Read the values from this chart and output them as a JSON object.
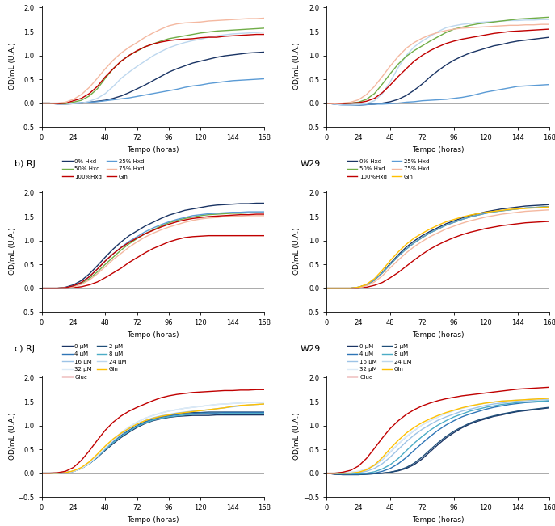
{
  "t": [
    0,
    6,
    12,
    18,
    24,
    30,
    36,
    42,
    48,
    54,
    60,
    66,
    72,
    78,
    84,
    90,
    96,
    102,
    108,
    114,
    120,
    126,
    132,
    138,
    144,
    150,
    156,
    162,
    168
  ],
  "row0_RJ": {
    "Hxd": [
      0,
      0,
      -0.02,
      -0.02,
      -0.01,
      0.0,
      0.02,
      0.04,
      0.06,
      0.1,
      0.15,
      0.22,
      0.3,
      0.38,
      0.47,
      0.56,
      0.65,
      0.72,
      0.78,
      0.84,
      0.88,
      0.92,
      0.96,
      0.99,
      1.01,
      1.03,
      1.05,
      1.06,
      1.07
    ],
    "Hxd+SDS": [
      0,
      0,
      0,
      0,
      0,
      0.01,
      0.02,
      0.03,
      0.05,
      0.07,
      0.09,
      0.11,
      0.14,
      0.17,
      0.2,
      0.23,
      0.26,
      0.29,
      0.33,
      0.36,
      0.38,
      0.41,
      0.43,
      0.45,
      0.47,
      0.48,
      0.49,
      0.5,
      0.51
    ],
    "Hxd+T8": [
      0,
      0,
      -0.02,
      -0.02,
      -0.01,
      0.0,
      0.04,
      0.1,
      0.2,
      0.35,
      0.52,
      0.65,
      0.77,
      0.88,
      0.99,
      1.08,
      1.16,
      1.22,
      1.27,
      1.31,
      1.34,
      1.38,
      1.41,
      1.43,
      1.45,
      1.46,
      1.47,
      1.48,
      1.49
    ],
    "T8": [
      0,
      0,
      -0.01,
      -0.01,
      0.02,
      0.06,
      0.15,
      0.3,
      0.52,
      0.72,
      0.88,
      1.0,
      1.09,
      1.18,
      1.24,
      1.3,
      1.35,
      1.38,
      1.41,
      1.44,
      1.47,
      1.49,
      1.51,
      1.52,
      1.53,
      1.54,
      1.55,
      1.56,
      1.57
    ],
    "Gln": [
      0,
      0,
      -0.01,
      0.0,
      0.05,
      0.1,
      0.2,
      0.35,
      0.55,
      0.72,
      0.88,
      1.0,
      1.1,
      1.18,
      1.24,
      1.28,
      1.31,
      1.33,
      1.34,
      1.35,
      1.37,
      1.38,
      1.38,
      1.4,
      1.41,
      1.42,
      1.43,
      1.44,
      1.44
    ],
    "Gluc": [
      0,
      0,
      0.0,
      0.02,
      0.08,
      0.18,
      0.33,
      0.52,
      0.72,
      0.9,
      1.05,
      1.17,
      1.27,
      1.38,
      1.47,
      1.55,
      1.62,
      1.66,
      1.68,
      1.69,
      1.7,
      1.72,
      1.73,
      1.74,
      1.75,
      1.76,
      1.77,
      1.77,
      1.78
    ]
  },
  "row0_W29": {
    "Hxd": [
      0,
      -0.02,
      -0.03,
      -0.04,
      -0.04,
      -0.03,
      -0.02,
      0.0,
      0.03,
      0.08,
      0.16,
      0.27,
      0.4,
      0.55,
      0.68,
      0.8,
      0.9,
      0.98,
      1.05,
      1.1,
      1.15,
      1.2,
      1.23,
      1.27,
      1.3,
      1.32,
      1.34,
      1.36,
      1.38
    ],
    "Hxd+SDS": [
      0,
      -0.02,
      -0.04,
      -0.04,
      -0.04,
      -0.03,
      -0.02,
      -0.02,
      -0.01,
      0.0,
      0.02,
      0.03,
      0.05,
      0.06,
      0.07,
      0.08,
      0.1,
      0.12,
      0.15,
      0.19,
      0.23,
      0.26,
      0.29,
      0.32,
      0.35,
      0.36,
      0.37,
      0.38,
      0.39
    ],
    "Hxd+T8": [
      0,
      -0.02,
      -0.04,
      -0.04,
      -0.03,
      -0.01,
      0.05,
      0.2,
      0.45,
      0.75,
      1.0,
      1.18,
      1.3,
      1.4,
      1.5,
      1.58,
      1.62,
      1.65,
      1.67,
      1.69,
      1.7,
      1.71,
      1.72,
      1.73,
      1.73,
      1.74,
      1.74,
      1.75,
      1.75
    ],
    "T8": [
      0,
      -0.01,
      -0.01,
      0.0,
      0.02,
      0.08,
      0.2,
      0.4,
      0.62,
      0.82,
      0.98,
      1.1,
      1.2,
      1.3,
      1.39,
      1.48,
      1.55,
      1.59,
      1.63,
      1.66,
      1.68,
      1.7,
      1.72,
      1.74,
      1.76,
      1.77,
      1.78,
      1.79,
      1.8
    ],
    "Gln": [
      0,
      -0.01,
      -0.01,
      0.0,
      0.01,
      0.04,
      0.1,
      0.22,
      0.38,
      0.56,
      0.72,
      0.88,
      1.0,
      1.1,
      1.18,
      1.25,
      1.3,
      1.34,
      1.37,
      1.4,
      1.43,
      1.46,
      1.48,
      1.5,
      1.51,
      1.52,
      1.53,
      1.54,
      1.55
    ],
    "Gluc": [
      0,
      -0.01,
      0.0,
      0.02,
      0.07,
      0.18,
      0.35,
      0.56,
      0.78,
      0.98,
      1.15,
      1.27,
      1.36,
      1.43,
      1.48,
      1.52,
      1.55,
      1.57,
      1.58,
      1.59,
      1.6,
      1.61,
      1.62,
      1.63,
      1.63,
      1.64,
      1.64,
      1.65,
      1.65
    ]
  },
  "row1_RJ": {
    "0%Hxd": [
      0,
      0,
      0.0,
      0.02,
      0.07,
      0.16,
      0.3,
      0.47,
      0.65,
      0.82,
      0.97,
      1.1,
      1.2,
      1.3,
      1.38,
      1.46,
      1.53,
      1.58,
      1.63,
      1.66,
      1.69,
      1.72,
      1.74,
      1.75,
      1.76,
      1.77,
      1.77,
      1.78,
      1.78
    ],
    "25%Hxd": [
      0,
      0,
      0.0,
      0.01,
      0.05,
      0.12,
      0.24,
      0.4,
      0.57,
      0.72,
      0.86,
      0.98,
      1.08,
      1.18,
      1.26,
      1.33,
      1.39,
      1.44,
      1.48,
      1.52,
      1.54,
      1.56,
      1.57,
      1.58,
      1.59,
      1.59,
      1.6,
      1.6,
      1.6
    ],
    "50%Hxd": [
      0,
      0,
      0.0,
      0.01,
      0.04,
      0.1,
      0.2,
      0.34,
      0.5,
      0.65,
      0.8,
      0.93,
      1.04,
      1.14,
      1.22,
      1.3,
      1.37,
      1.42,
      1.46,
      1.49,
      1.52,
      1.54,
      1.55,
      1.56,
      1.57,
      1.57,
      1.58,
      1.58,
      1.58
    ],
    "75%Hxd": [
      0,
      0,
      0.0,
      0.01,
      0.03,
      0.08,
      0.17,
      0.3,
      0.45,
      0.6,
      0.73,
      0.86,
      0.97,
      1.07,
      1.15,
      1.22,
      1.28,
      1.33,
      1.38,
      1.42,
      1.45,
      1.47,
      1.48,
      1.5,
      1.51,
      1.51,
      1.52,
      1.52,
      1.52
    ],
    "100%Hxd": [
      0,
      0,
      0.0,
      0.0,
      0.01,
      0.03,
      0.07,
      0.13,
      0.22,
      0.32,
      0.42,
      0.54,
      0.64,
      0.74,
      0.83,
      0.9,
      0.97,
      1.02,
      1.06,
      1.08,
      1.09,
      1.1,
      1.1,
      1.1,
      1.1,
      1.1,
      1.1,
      1.1,
      1.1
    ],
    "Gln": [
      0,
      0,
      0.0,
      0.01,
      0.05,
      0.12,
      0.24,
      0.4,
      0.57,
      0.72,
      0.85,
      0.96,
      1.05,
      1.14,
      1.21,
      1.28,
      1.34,
      1.39,
      1.43,
      1.46,
      1.48,
      1.5,
      1.51,
      1.52,
      1.53,
      1.54,
      1.54,
      1.55,
      1.55
    ]
  },
  "row1_W29": {
    "0%Hxd": [
      0,
      0,
      0.0,
      0.0,
      0.02,
      0.07,
      0.17,
      0.33,
      0.52,
      0.7,
      0.86,
      0.99,
      1.1,
      1.19,
      1.27,
      1.35,
      1.41,
      1.47,
      1.52,
      1.56,
      1.6,
      1.63,
      1.66,
      1.68,
      1.7,
      1.72,
      1.73,
      1.74,
      1.75
    ],
    "25%Hxd": [
      0,
      0,
      0.0,
      0.0,
      0.02,
      0.07,
      0.17,
      0.32,
      0.5,
      0.67,
      0.82,
      0.95,
      1.06,
      1.16,
      1.24,
      1.32,
      1.38,
      1.44,
      1.49,
      1.53,
      1.57,
      1.6,
      1.62,
      1.64,
      1.66,
      1.68,
      1.69,
      1.7,
      1.71
    ],
    "50%Hxd": [
      0,
      0,
      0.0,
      0.0,
      0.02,
      0.07,
      0.17,
      0.32,
      0.5,
      0.67,
      0.82,
      0.95,
      1.06,
      1.16,
      1.24,
      1.32,
      1.38,
      1.44,
      1.49,
      1.53,
      1.57,
      1.6,
      1.62,
      1.64,
      1.66,
      1.68,
      1.69,
      1.7,
      1.71
    ],
    "75%Hxd": [
      0,
      0,
      0.0,
      0.0,
      0.01,
      0.05,
      0.13,
      0.26,
      0.43,
      0.59,
      0.74,
      0.87,
      0.98,
      1.08,
      1.16,
      1.24,
      1.3,
      1.36,
      1.41,
      1.45,
      1.49,
      1.52,
      1.55,
      1.57,
      1.59,
      1.61,
      1.62,
      1.63,
      1.64
    ],
    "100%Hxd": [
      0,
      0,
      0.0,
      0.0,
      0.0,
      0.02,
      0.06,
      0.12,
      0.22,
      0.33,
      0.46,
      0.59,
      0.71,
      0.82,
      0.91,
      0.99,
      1.06,
      1.12,
      1.17,
      1.21,
      1.25,
      1.28,
      1.31,
      1.33,
      1.35,
      1.37,
      1.38,
      1.39,
      1.4
    ],
    "Gln": [
      0,
      0,
      0.0,
      0.0,
      0.02,
      0.08,
      0.2,
      0.38,
      0.58,
      0.76,
      0.92,
      1.05,
      1.15,
      1.24,
      1.32,
      1.39,
      1.44,
      1.49,
      1.53,
      1.56,
      1.59,
      1.61,
      1.63,
      1.65,
      1.66,
      1.67,
      1.68,
      1.69,
      1.7
    ]
  },
  "row2_RJ": {
    "0uM": [
      0,
      0,
      0.0,
      0.01,
      0.04,
      0.1,
      0.2,
      0.33,
      0.48,
      0.62,
      0.75,
      0.86,
      0.96,
      1.04,
      1.1,
      1.14,
      1.17,
      1.19,
      1.2,
      1.21,
      1.21,
      1.21,
      1.22,
      1.22,
      1.22,
      1.22,
      1.22,
      1.22,
      1.22
    ],
    "2uM": [
      0,
      0,
      0.0,
      0.01,
      0.04,
      0.1,
      0.21,
      0.35,
      0.51,
      0.66,
      0.79,
      0.9,
      1.0,
      1.08,
      1.14,
      1.18,
      1.21,
      1.24,
      1.26,
      1.27,
      1.27,
      1.28,
      1.28,
      1.28,
      1.28,
      1.28,
      1.28,
      1.28,
      1.28
    ],
    "4uM": [
      0,
      0,
      0.0,
      0.01,
      0.04,
      0.1,
      0.2,
      0.34,
      0.5,
      0.65,
      0.78,
      0.89,
      0.99,
      1.07,
      1.13,
      1.17,
      1.2,
      1.22,
      1.24,
      1.25,
      1.26,
      1.26,
      1.26,
      1.27,
      1.27,
      1.27,
      1.27,
      1.27,
      1.27
    ],
    "8uM": [
      0,
      0,
      0.0,
      0.01,
      0.04,
      0.1,
      0.2,
      0.34,
      0.5,
      0.64,
      0.77,
      0.88,
      0.98,
      1.05,
      1.11,
      1.15,
      1.18,
      1.2,
      1.22,
      1.23,
      1.24,
      1.24,
      1.24,
      1.25,
      1.25,
      1.25,
      1.25,
      1.25,
      1.25
    ],
    "16uM": [
      0,
      0,
      0.0,
      0.01,
      0.04,
      0.1,
      0.2,
      0.35,
      0.52,
      0.68,
      0.82,
      0.93,
      1.03,
      1.1,
      1.16,
      1.2,
      1.23,
      1.26,
      1.28,
      1.3,
      1.31,
      1.33,
      1.35,
      1.37,
      1.39,
      1.41,
      1.43,
      1.44,
      1.45
    ],
    "24uM": [
      0,
      0,
      0.0,
      0.01,
      0.04,
      0.1,
      0.21,
      0.37,
      0.54,
      0.7,
      0.85,
      0.97,
      1.07,
      1.15,
      1.21,
      1.26,
      1.3,
      1.33,
      1.36,
      1.38,
      1.4,
      1.42,
      1.44,
      1.45,
      1.46,
      1.47,
      1.48,
      1.48,
      1.49
    ],
    "32uM": [
      0,
      0,
      0.0,
      0.01,
      0.04,
      0.1,
      0.21,
      0.37,
      0.54,
      0.7,
      0.85,
      0.97,
      1.07,
      1.15,
      1.21,
      1.26,
      1.3,
      1.33,
      1.36,
      1.38,
      1.4,
      1.42,
      1.44,
      1.45,
      1.46,
      1.47,
      1.48,
      1.48,
      1.49
    ],
    "Gln": [
      0,
      0,
      0.0,
      0.01,
      0.05,
      0.12,
      0.24,
      0.4,
      0.57,
      0.72,
      0.84,
      0.94,
      1.03,
      1.1,
      1.15,
      1.19,
      1.22,
      1.25,
      1.27,
      1.29,
      1.31,
      1.33,
      1.35,
      1.37,
      1.4,
      1.42,
      1.43,
      1.44,
      1.45
    ],
    "Gluc": [
      0,
      0,
      0.01,
      0.04,
      0.12,
      0.27,
      0.47,
      0.69,
      0.9,
      1.07,
      1.2,
      1.3,
      1.38,
      1.45,
      1.52,
      1.58,
      1.62,
      1.65,
      1.67,
      1.69,
      1.7,
      1.71,
      1.72,
      1.73,
      1.73,
      1.74,
      1.74,
      1.75,
      1.75
    ]
  },
  "row2_W29": {
    "0uM": [
      0,
      -0.02,
      -0.03,
      -0.03,
      -0.03,
      -0.02,
      -0.01,
      0.0,
      0.02,
      0.05,
      0.1,
      0.18,
      0.3,
      0.45,
      0.6,
      0.74,
      0.85,
      0.95,
      1.03,
      1.09,
      1.14,
      1.19,
      1.22,
      1.26,
      1.29,
      1.31,
      1.33,
      1.35,
      1.37
    ],
    "2uM": [
      0,
      -0.02,
      -0.03,
      -0.03,
      -0.03,
      -0.02,
      -0.01,
      0.0,
      0.02,
      0.06,
      0.12,
      0.21,
      0.34,
      0.49,
      0.64,
      0.77,
      0.88,
      0.97,
      1.05,
      1.11,
      1.16,
      1.2,
      1.24,
      1.27,
      1.3,
      1.32,
      1.34,
      1.36,
      1.38
    ],
    "4uM": [
      0,
      -0.01,
      -0.02,
      -0.02,
      -0.02,
      -0.01,
      0.0,
      0.04,
      0.1,
      0.2,
      0.33,
      0.48,
      0.63,
      0.77,
      0.9,
      1.01,
      1.1,
      1.18,
      1.24,
      1.29,
      1.34,
      1.38,
      1.41,
      1.44,
      1.46,
      1.48,
      1.49,
      1.5,
      1.51
    ],
    "8uM": [
      0,
      -0.01,
      -0.01,
      -0.01,
      -0.01,
      0.0,
      0.03,
      0.09,
      0.18,
      0.31,
      0.47,
      0.63,
      0.77,
      0.9,
      1.01,
      1.1,
      1.18,
      1.24,
      1.3,
      1.34,
      1.38,
      1.41,
      1.44,
      1.46,
      1.48,
      1.49,
      1.5,
      1.51,
      1.52
    ],
    "16uM": [
      0,
      0.0,
      0.0,
      0.0,
      0.01,
      0.04,
      0.1,
      0.2,
      0.34,
      0.5,
      0.66,
      0.8,
      0.92,
      1.02,
      1.11,
      1.18,
      1.24,
      1.3,
      1.34,
      1.38,
      1.42,
      1.45,
      1.47,
      1.49,
      1.51,
      1.52,
      1.53,
      1.54,
      1.55
    ],
    "24uM": [
      0,
      0.0,
      0.01,
      0.02,
      0.04,
      0.08,
      0.16,
      0.28,
      0.44,
      0.61,
      0.76,
      0.89,
      1.01,
      1.1,
      1.18,
      1.25,
      1.31,
      1.36,
      1.4,
      1.44,
      1.47,
      1.49,
      1.51,
      1.52,
      1.53,
      1.54,
      1.55,
      1.56,
      1.56
    ],
    "32uM": [
      0,
      0.0,
      0.01,
      0.02,
      0.04,
      0.09,
      0.18,
      0.3,
      0.46,
      0.62,
      0.77,
      0.9,
      1.01,
      1.1,
      1.18,
      1.25,
      1.31,
      1.36,
      1.4,
      1.44,
      1.47,
      1.49,
      1.51,
      1.52,
      1.53,
      1.54,
      1.55,
      1.56,
      1.56
    ],
    "Gln": [
      0,
      0.0,
      0.0,
      0.0,
      0.02,
      0.07,
      0.17,
      0.33,
      0.52,
      0.69,
      0.84,
      0.96,
      1.06,
      1.14,
      1.21,
      1.27,
      1.32,
      1.37,
      1.41,
      1.44,
      1.47,
      1.49,
      1.51,
      1.52,
      1.53,
      1.54,
      1.55,
      1.56,
      1.57
    ],
    "Gluc": [
      0,
      0.0,
      0.02,
      0.06,
      0.15,
      0.31,
      0.52,
      0.74,
      0.94,
      1.1,
      1.23,
      1.33,
      1.41,
      1.47,
      1.52,
      1.56,
      1.59,
      1.62,
      1.64,
      1.66,
      1.68,
      1.7,
      1.72,
      1.74,
      1.76,
      1.77,
      1.78,
      1.79,
      1.8
    ]
  },
  "colors": {
    "Hxd": "#1a3464",
    "Hxd+SDS": "#5b9bd5",
    "Hxd+T8": "#bdd7ee",
    "T8": "#70ad47",
    "Gln": "#c00000",
    "Gluc": "#f4b8a0",
    "0%Hxd": "#1a3464",
    "25%Hxd": "#5b9bd5",
    "50%Hxd": "#70ad47",
    "75%Hxd": "#f4b8a0",
    "100%Hxd": "#c00000",
    "Gln_row1": "#c00000",
    "Gln_row1_W29": "#ffc000",
    "0uM": "#1a3464",
    "2uM": "#1f4e79",
    "4uM": "#2e75b6",
    "8uM": "#4bacc6",
    "16uM": "#9dc3e6",
    "24uM": "#bdd7ee",
    "32uM": "#ddebf7",
    "Gln_uM": "#ffc000",
    "Gluc_uM": "#c00000"
  },
  "lw": 1.0
}
